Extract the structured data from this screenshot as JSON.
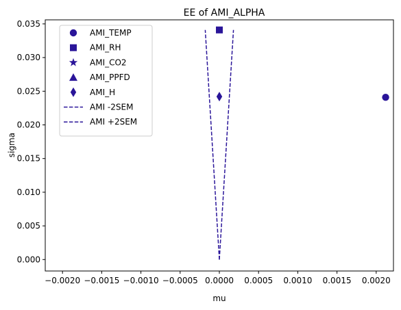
{
  "chart_data": {
    "type": "scatter",
    "title": "EE of AMI_ALPHA",
    "xlabel": "mu",
    "ylabel": "sigma",
    "xlim": [
      -0.00222,
      0.00222
    ],
    "ylim": [
      -0.0017,
      0.0356
    ],
    "x_ticks": [
      -0.002,
      -0.0015,
      -0.001,
      -0.0005,
      0.0,
      0.0005,
      0.001,
      0.0015,
      0.002
    ],
    "x_tick_labels": [
      "−0.0020",
      "−0.0015",
      "−0.0010",
      "−0.0005",
      "0.0000",
      "0.0005",
      "0.0010",
      "0.0015",
      "0.0020"
    ],
    "y_ticks": [
      0.0,
      0.005,
      0.01,
      0.015,
      0.02,
      0.025,
      0.03,
      0.035
    ],
    "y_tick_labels": [
      "0.000",
      "0.005",
      "0.010",
      "0.015",
      "0.020",
      "0.025",
      "0.030",
      "0.035"
    ],
    "grid": false,
    "legend_position": "upper-left",
    "color": "#2a1599",
    "points": [
      {
        "name": "AMI_TEMP",
        "marker": "circle",
        "x": 0.00212,
        "y": 0.0241
      },
      {
        "name": "AMI_RH",
        "marker": "square",
        "x": 0.0,
        "y": 0.0341
      },
      {
        "name": "AMI_CO2",
        "marker": "star",
        "x": null,
        "y": null
      },
      {
        "name": "AMI_PPFD",
        "marker": "triangle",
        "x": null,
        "y": null
      },
      {
        "name": "AMI_H",
        "marker": "diamond",
        "x": 0.0,
        "y": 0.0242
      }
    ],
    "lines": [
      {
        "name": "AMI -2SEM",
        "style": "dashed",
        "x": [
          0.0,
          -0.00018
        ],
        "y": [
          0.0,
          0.0341
        ]
      },
      {
        "name": "AMI +2SEM",
        "style": "dashed",
        "x": [
          0.0,
          0.00018
        ],
        "y": [
          0.0,
          0.0341
        ]
      }
    ]
  }
}
